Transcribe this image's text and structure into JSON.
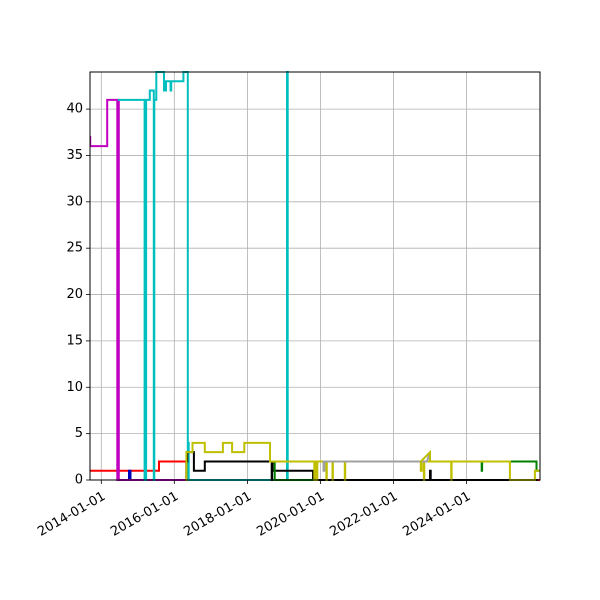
{
  "chart_data": {
    "type": "line",
    "title": "",
    "xlabel": "",
    "ylabel": "",
    "grid": true,
    "legend": "none",
    "xlim": [
      "2013-09-10",
      "2026-01-05"
    ],
    "ylim": [
      0,
      44
    ],
    "x_ticks": [
      "2014-01-01",
      "2016-01-01",
      "2018-01-01",
      "2020-01-01",
      "2022-01-01",
      "2024-01-01"
    ],
    "y_ticks": [
      0,
      5,
      10,
      15,
      20,
      25,
      30,
      35,
      40
    ],
    "series": [
      {
        "color": "#ff0000",
        "points": [
          [
            "2013-09-10",
            1
          ],
          [
            "2015-08-01",
            1
          ],
          [
            "2015-08-01",
            2
          ],
          [
            "2016-05-01",
            2
          ],
          [
            "2016-05-01",
            0
          ],
          [
            "2026-01-05",
            0
          ]
        ]
      },
      {
        "color": "#0000bb",
        "points": [
          [
            "2014-10-05",
            0
          ],
          [
            "2014-10-05",
            1
          ],
          [
            "2014-10-20",
            1
          ],
          [
            "2014-10-20",
            0
          ]
        ]
      },
      {
        "color": "#bf00bf",
        "points": [
          [
            "2013-09-10",
            37
          ],
          [
            "2013-09-12",
            37
          ],
          [
            "2013-09-12",
            36
          ],
          [
            "2014-03-01",
            36
          ],
          [
            "2014-03-01",
            41
          ],
          [
            "2014-06-10",
            41
          ],
          [
            "2014-06-10",
            0
          ],
          [
            "2014-06-18",
            0
          ],
          [
            "2014-06-18",
            41
          ],
          [
            "2014-06-25",
            41
          ],
          [
            "2014-06-25",
            0
          ],
          [
            "2017-06-01",
            0
          ]
        ]
      },
      {
        "color": "#00bfbf",
        "points": [
          [
            "2014-06-25",
            41
          ],
          [
            "2015-03-10",
            41
          ],
          [
            "2015-03-10",
            0
          ],
          [
            "2015-03-25",
            0
          ],
          [
            "2015-03-25",
            41
          ],
          [
            "2015-05-01",
            41
          ],
          [
            "2015-05-01",
            42
          ],
          [
            "2015-06-10",
            42
          ],
          [
            "2015-06-10",
            0
          ],
          [
            "2015-06-15",
            0
          ],
          [
            "2015-06-15",
            41
          ],
          [
            "2015-07-05",
            41
          ],
          [
            "2015-07-05",
            44
          ],
          [
            "2015-09-20",
            44
          ],
          [
            "2015-09-20",
            42
          ],
          [
            "2015-10-10",
            42
          ],
          [
            "2015-10-10",
            43
          ],
          [
            "2015-11-25",
            43
          ],
          [
            "2015-11-25",
            42
          ],
          [
            "2015-12-01",
            42
          ],
          [
            "2015-12-01",
            43
          ],
          [
            "2016-04-01",
            43
          ],
          [
            "2016-04-01",
            44
          ],
          [
            "2016-05-15",
            44
          ],
          [
            "2016-05-15",
            0
          ],
          [
            "2016-05-18",
            0
          ],
          [
            "2016-05-18",
            4
          ],
          [
            "2016-05-24",
            4
          ],
          [
            "2016-05-24",
            0
          ],
          [
            "2019-02-01",
            0
          ],
          [
            "2019-02-01",
            44
          ],
          [
            "2019-02-08",
            44
          ],
          [
            "2019-02-08",
            0
          ],
          [
            "2019-03-01",
            0
          ]
        ]
      },
      {
        "color": "#000000",
        "points": [
          [
            "2016-05-01",
            0
          ],
          [
            "2016-05-01",
            2
          ],
          [
            "2016-05-10",
            2
          ],
          [
            "2016-05-10",
            3
          ],
          [
            "2016-07-15",
            3
          ],
          [
            "2016-07-15",
            1
          ],
          [
            "2016-11-01",
            1
          ],
          [
            "2016-11-01",
            2
          ],
          [
            "2018-09-01",
            2
          ],
          [
            "2018-09-01",
            0
          ],
          [
            "2018-09-05",
            0
          ],
          [
            "2018-09-05",
            2
          ],
          [
            "2018-09-10",
            2
          ],
          [
            "2018-09-10",
            1
          ],
          [
            "2019-10-20",
            1
          ],
          [
            "2019-10-20",
            0
          ],
          [
            "2023-01-01",
            0
          ],
          [
            "2023-01-01",
            1
          ],
          [
            "2023-01-08",
            1
          ],
          [
            "2023-01-08",
            0
          ],
          [
            "2025-12-01",
            0
          ]
        ]
      },
      {
        "color": "#007f00",
        "points": [
          [
            "2018-10-01",
            2
          ],
          [
            "2018-10-01",
            0
          ],
          [
            "2019-11-15",
            0
          ],
          [
            "2019-11-15",
            2
          ],
          [
            "2024-06-01",
            2
          ],
          [
            "2024-06-01",
            1
          ],
          [
            "2024-06-05",
            1
          ],
          [
            "2024-06-05",
            2
          ],
          [
            "2025-12-01",
            2
          ],
          [
            "2025-12-01",
            1
          ],
          [
            "2026-01-05",
            1
          ]
        ]
      },
      {
        "color": "#bfbf00",
        "points": [
          [
            "2016-05-01",
            0
          ],
          [
            "2016-05-01",
            3
          ],
          [
            "2016-07-01",
            3
          ],
          [
            "2016-07-01",
            4
          ],
          [
            "2016-11-01",
            4
          ],
          [
            "2016-11-01",
            3
          ],
          [
            "2017-05-01",
            3
          ],
          [
            "2017-05-01",
            4
          ],
          [
            "2017-08-01",
            4
          ],
          [
            "2017-08-01",
            3
          ],
          [
            "2017-12-01",
            3
          ],
          [
            "2017-12-01",
            4
          ],
          [
            "2018-08-15",
            4
          ],
          [
            "2018-08-15",
            2
          ],
          [
            "2019-11-01",
            2
          ],
          [
            "2019-11-01",
            0
          ],
          [
            "2019-11-05",
            0
          ],
          [
            "2019-11-05",
            2
          ],
          [
            "2019-11-25",
            2
          ],
          [
            "2019-11-25",
            0
          ],
          [
            "2019-12-01",
            0
          ],
          [
            "2019-12-01",
            2
          ],
          [
            "2020-03-01",
            2
          ],
          [
            "2020-03-01",
            0
          ],
          [
            "2020-03-05",
            0
          ],
          [
            "2020-03-05",
            2
          ],
          [
            "2020-05-01",
            2
          ],
          [
            "2020-05-01",
            0
          ],
          [
            "2020-05-05",
            0
          ],
          [
            "2020-05-05",
            2
          ],
          [
            "2020-09-01",
            2
          ],
          [
            "2020-09-01",
            0
          ],
          [
            "2020-09-05",
            0
          ],
          [
            "2020-09-05",
            2
          ],
          [
            "2022-10-01",
            2
          ],
          [
            "2022-10-01",
            1
          ],
          [
            "2022-10-10",
            1
          ],
          [
            "2022-10-10",
            2
          ],
          [
            "2022-11-01",
            2
          ],
          [
            "2022-11-01",
            0
          ],
          [
            "2022-11-05",
            0
          ],
          [
            "2022-11-05",
            2
          ],
          [
            "2023-08-01",
            2
          ],
          [
            "2023-08-01",
            0
          ],
          [
            "2023-08-05",
            0
          ],
          [
            "2023-08-05",
            2
          ],
          [
            "2025-03-10",
            2
          ],
          [
            "2025-03-10",
            0
          ],
          [
            "2025-11-15",
            0
          ],
          [
            "2025-11-15",
            1
          ],
          [
            "2026-01-05",
            1
          ]
        ]
      },
      {
        "color": "#a0a0a0",
        "points": [
          [
            "2020-02-01",
            2
          ],
          [
            "2020-02-01",
            1
          ],
          [
            "2020-02-10",
            1
          ],
          [
            "2020-02-10",
            2
          ],
          [
            "2022-12-01",
            2
          ],
          [
            "2023-01-01",
            3
          ],
          [
            "2023-01-01",
            2
          ],
          [
            "2023-02-01",
            2
          ]
        ]
      },
      {
        "color": "#bfbf00",
        "points": [
          [
            "2022-10-01",
            2
          ],
          [
            "2023-01-01",
            3
          ],
          [
            "2023-01-01",
            2
          ],
          [
            "2025-03-10",
            2
          ]
        ]
      }
    ]
  }
}
